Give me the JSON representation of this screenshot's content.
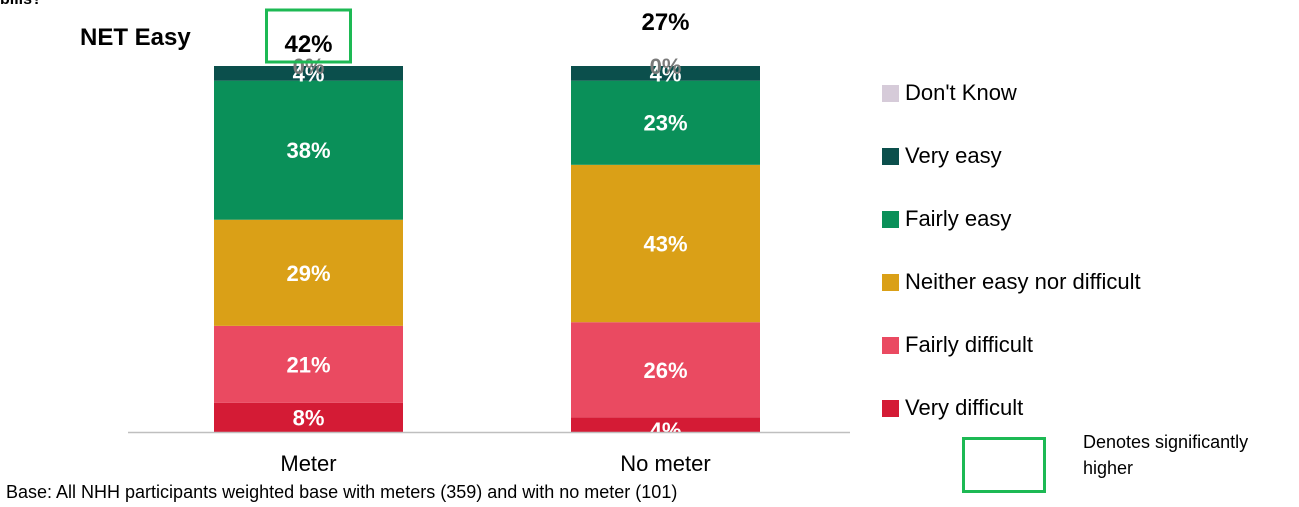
{
  "title_fragment": "bills?",
  "net_easy": {
    "label": "NET Easy",
    "values": [
      "42%",
      "27%"
    ],
    "significant": [
      true,
      false
    ]
  },
  "chart_data": {
    "type": "bar",
    "stacked": true,
    "categories": [
      "Meter",
      "No meter"
    ],
    "series": [
      {
        "name": "Very difficult",
        "values": [
          8,
          4
        ],
        "labels": [
          "8%",
          "4%"
        ],
        "color": "#d41b35"
      },
      {
        "name": "Fairly difficult",
        "values": [
          21,
          26
        ],
        "labels": [
          "21%",
          "26%"
        ],
        "color": "#ea4a61"
      },
      {
        "name": "Neither easy nor difficult",
        "values": [
          29,
          43
        ],
        "labels": [
          "29%",
          "43%"
        ],
        "color": "#daa017"
      },
      {
        "name": "Fairly easy",
        "values": [
          38,
          23
        ],
        "labels": [
          "38%",
          "23%"
        ],
        "color": "#0a9059"
      },
      {
        "name": "Very easy",
        "values": [
          4,
          4
        ],
        "labels": [
          "4%",
          "4%"
        ],
        "color": "#0b4f4c"
      },
      {
        "name": "Don't Know",
        "values": [
          0,
          0
        ],
        "labels": [
          "0%",
          "0%"
        ],
        "color": "#d6cbd9"
      }
    ],
    "legend_order": [
      "Don't Know",
      "Very easy",
      "Fairly easy",
      "Neither easy nor difficult",
      "Fairly difficult",
      "Very difficult"
    ],
    "legend_position": "right",
    "ylim": [
      0,
      100
    ],
    "grid": false
  },
  "footnote": "Base: All NHH participants weighted base with meters (359) and with no meter (101)",
  "significance_legend": "Denotes significantly higher",
  "colors": {
    "significance_box": "#1db954",
    "axis": "#bfbfbf"
  }
}
